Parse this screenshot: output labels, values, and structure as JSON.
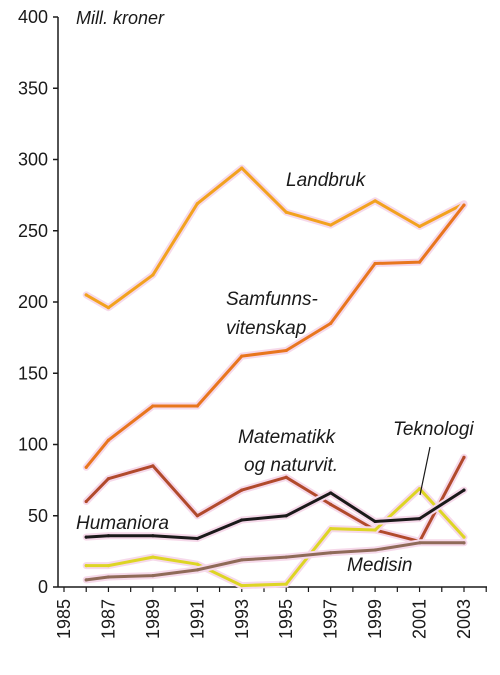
{
  "chart_data": {
    "type": "line",
    "ylabel": "Mill. kroner",
    "ylim": [
      0,
      400
    ],
    "yticks": [
      0,
      50,
      100,
      150,
      200,
      250,
      300,
      350,
      400
    ],
    "x": [
      1986,
      1987,
      1989,
      1991,
      1993,
      1995,
      1997,
      1999,
      2001,
      2003
    ],
    "xticks": [
      "1985",
      "1987",
      "1989",
      "1991",
      "1993",
      "1995",
      "1997",
      "1999",
      "2001",
      "2003"
    ],
    "grid": false,
    "series": [
      {
        "name": "Landbruk",
        "color": "#f2a21f",
        "values": [
          205,
          196,
          219,
          269,
          294,
          263,
          254,
          271,
          253,
          269
        ]
      },
      {
        "name": "Samfunns-vitenskap",
        "color": "#e8761e",
        "values": [
          84,
          103,
          127,
          127,
          162,
          166,
          185,
          227,
          228,
          268
        ]
      },
      {
        "name": "Matematikk og naturvit.",
        "color": "#b14a2c",
        "values": [
          60,
          76,
          85,
          50,
          68,
          77,
          58,
          40,
          32,
          91
        ]
      },
      {
        "name": "Teknologi",
        "color": "#ddd524",
        "values": [
          15,
          15,
          21,
          16,
          1,
          2,
          41,
          40,
          69,
          35
        ]
      },
      {
        "name": "Humaniora",
        "color": "#1a1a1a",
        "values": [
          35,
          36,
          36,
          34,
          47,
          50,
          66,
          46,
          48,
          68
        ]
      },
      {
        "name": "Medisin",
        "color": "#8f6a58",
        "values": [
          5,
          7,
          8,
          12,
          19,
          21,
          24,
          26,
          31,
          31
        ]
      }
    ],
    "labels": {
      "landbruk": "Landbruk",
      "samfunns_line1": "Samfunns-",
      "samfunns_line2": "vitenskap",
      "matematikk_line1": "Matematikk",
      "matematikk_line2": "og naturvit.",
      "teknologi": "Teknologi",
      "humaniora": "Humaniora",
      "medisin": "Medisin"
    }
  }
}
